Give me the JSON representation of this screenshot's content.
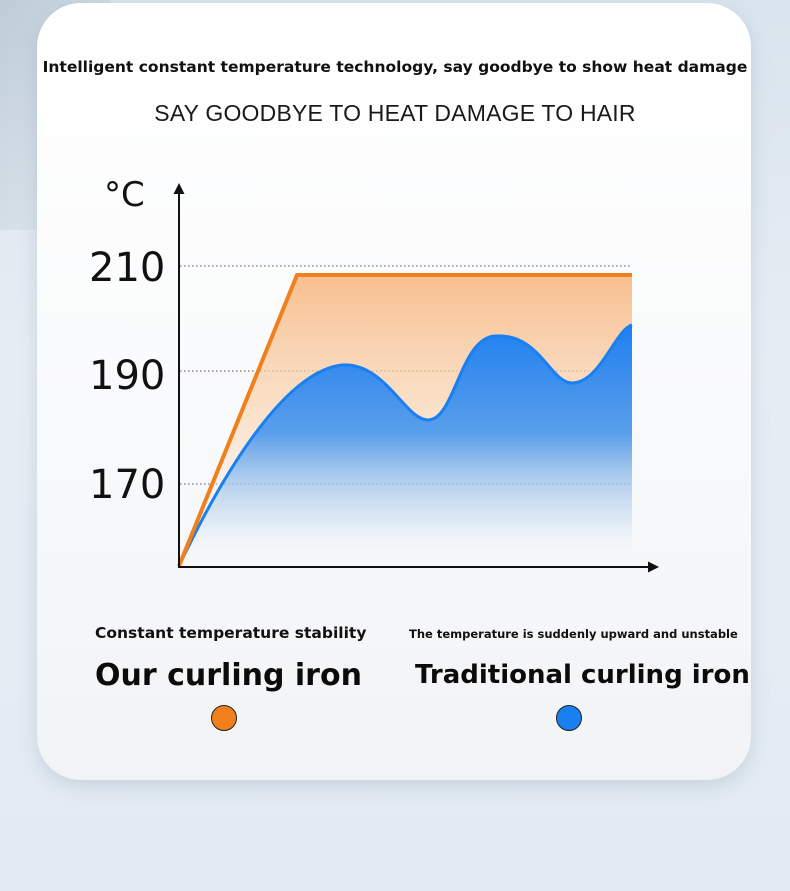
{
  "headline": "Intelligent constant temperature technology, say goodbye to show heat damage",
  "subheadline": "SAY GOODBYE TO HEAT DAMAGE TO HAIR",
  "chart_data": {
    "type": "area",
    "unit_label": "°C",
    "y_ticks": [
      210,
      190,
      170
    ],
    "grid": "dotted horizontal lines at ticks",
    "series": [
      {
        "name": "Our curling iron",
        "color": "#f07f1e",
        "points": [
          [
            0,
            155
          ],
          [
            1,
            208.5
          ],
          [
            2,
            208.5
          ],
          [
            3,
            208.5
          ],
          [
            4,
            208.5
          ]
        ]
      },
      {
        "name": "Traditional curling iron",
        "color": "#1a7ff0",
        "points": [
          [
            0,
            155
          ],
          [
            0.7,
            178
          ],
          [
            1.4,
            189
          ],
          [
            1.75,
            190.4
          ],
          [
            2.15,
            188
          ],
          [
            2.5,
            182
          ],
          [
            2.8,
            186
          ],
          [
            3.1,
            196
          ],
          [
            3.45,
            195
          ],
          [
            3.85,
            189
          ],
          [
            4.05,
            191
          ],
          [
            4.3,
            198
          ]
        ]
      }
    ],
    "ylim": [
      155,
      215
    ]
  },
  "legend": {
    "left": {
      "description": "Constant temperature stability",
      "name": "Our curling iron",
      "color": "#f07f1e"
    },
    "right": {
      "description": "The temperature is suddenly upward and unstable",
      "name": "Traditional curling iron",
      "color": "#1a7ff0"
    }
  }
}
